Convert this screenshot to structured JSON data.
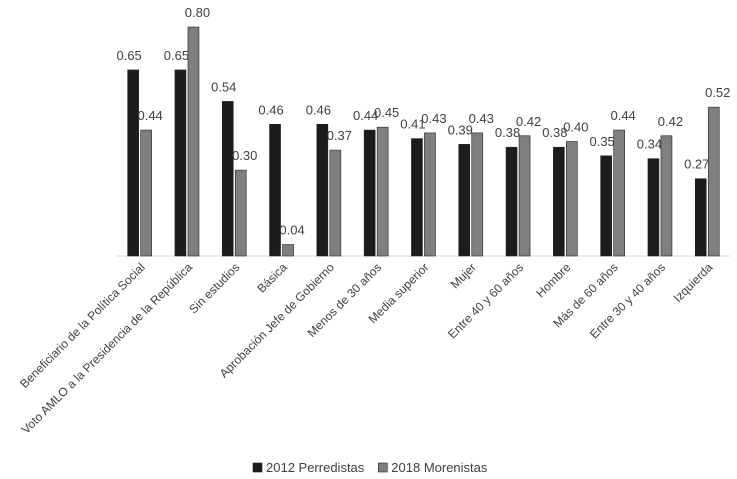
{
  "chart_data": {
    "type": "bar",
    "categories": [
      "Beneficiario de la Política Social",
      "Voto AMLO a la Presidencia de la República",
      "Sin estudios",
      "Básica",
      "Aprobación Jefe de Gobierno",
      "Menos de 30 años",
      "Media superior",
      "Mujer",
      "Entre 40 y 60 años",
      "Hombre",
      "Más de 60 años",
      "Entre 30 y 40 años",
      "Izquierda"
    ],
    "series": [
      {
        "name": "2012 Perredistas",
        "color": "#1c1c1c",
        "values": [
          0.65,
          0.65,
          0.54,
          0.46,
          0.46,
          0.44,
          0.41,
          0.39,
          0.38,
          0.38,
          0.35,
          0.34,
          0.27
        ],
        "value_labels": [
          "0.65",
          "0.65",
          "0.54",
          "0.46",
          "0.46",
          "0.44",
          "0.41",
          "0.39",
          "0.38",
          "0.38",
          "0.35",
          "0.34",
          "0.27"
        ]
      },
      {
        "name": "2018 Morenistas",
        "color": "#7f7f7f",
        "values": [
          0.44,
          0.8,
          0.3,
          0.04,
          0.37,
          0.45,
          0.43,
          0.43,
          0.42,
          0.4,
          0.44,
          0.42,
          0.52
        ],
        "value_labels": [
          "0.44",
          "0.80",
          "0.30",
          "0.04",
          "0.37",
          "0.45",
          "0.43",
          "0.43",
          "0.42",
          "0.40",
          "0.44",
          "0.42",
          "0.52"
        ]
      }
    ],
    "ylim": [
      0,
      0.8
    ],
    "legend": "bottom"
  }
}
